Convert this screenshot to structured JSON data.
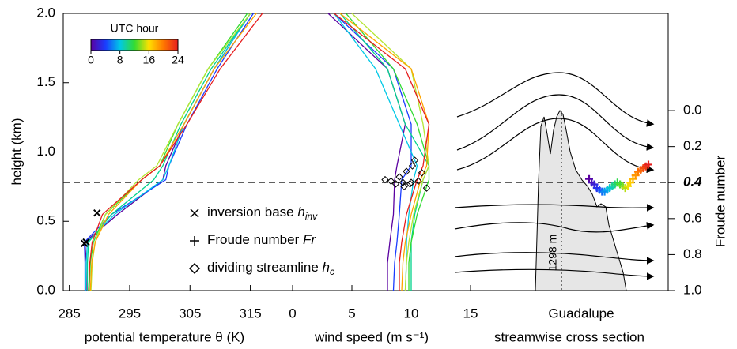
{
  "chart_data": [
    {
      "type": "line",
      "xlabel": "potential temperature θ (K)",
      "ylabel": "height (km)",
      "xlim": [
        284,
        322
      ],
      "xticks": [
        285,
        295,
        305,
        315
      ],
      "ylim": [
        0,
        2
      ],
      "yticks": [
        {
          "value": 0,
          "label": "0.0"
        },
        0.5,
        {
          "value": 1,
          "label": "1.0"
        },
        1.5,
        {
          "value": 2,
          "label": "2.0"
        }
      ],
      "y": [
        0,
        0.2,
        0.35,
        0.55,
        0.8,
        0.9,
        1.2,
        1.6,
        2.0
      ],
      "series": [
        {
          "color": "#5a00a0",
          "values": [
            287.8,
            287.8,
            287.6,
            293,
            300.5,
            301,
            304,
            309,
            315
          ]
        },
        {
          "color": "#1a3cff",
          "values": [
            287.6,
            287.6,
            287.5,
            292,
            301,
            301.5,
            304.5,
            309.5,
            315.5
          ]
        },
        {
          "color": "#00c8e6",
          "values": [
            287.7,
            287.8,
            288,
            292.5,
            300.5,
            301.5,
            304,
            309,
            315
          ]
        },
        {
          "color": "#00d28c",
          "values": [
            288,
            288,
            288.2,
            292,
            299,
            300.5,
            303.5,
            308.5,
            315
          ]
        },
        {
          "color": "#32dc32",
          "values": [
            288.3,
            288.5,
            289,
            291,
            297,
            300,
            303,
            308,
            314.5
          ]
        },
        {
          "color": "#b4e632",
          "values": [
            288.6,
            288.8,
            289.3,
            291,
            296.5,
            299.5,
            303,
            308,
            315
          ]
        },
        {
          "color": "#ffa500",
          "values": [
            288.5,
            288.7,
            289.3,
            291.5,
            297,
            300,
            304,
            309,
            316
          ]
        },
        {
          "color": "#e61e1e",
          "values": [
            288.2,
            288.4,
            288.8,
            290.5,
            297,
            300,
            304.5,
            310,
            317
          ]
        }
      ],
      "markers": {
        "x": [
          287.5,
          287.8,
          289.6
        ],
        "y": [
          0.34,
          0.35,
          0.56
        ]
      },
      "hline": 0.78,
      "colorbar": {
        "title": "UTC hour",
        "lim": [
          0,
          24
        ],
        "ticks": [
          0,
          8,
          16,
          24
        ],
        "colors": [
          "#5a00a0",
          "#1a3cff",
          "#00c8e6",
          "#32dc32",
          "#ffe000",
          "#ff7800",
          "#e61e1e"
        ]
      }
    },
    {
      "type": "line",
      "xlabel": "wind speed (m s⁻¹)",
      "xlim": [
        0,
        15
      ],
      "xticks": [
        0,
        5,
        10,
        15
      ],
      "ylim": [
        0,
        2
      ],
      "y": [
        0,
        0.2,
        0.35,
        0.55,
        0.8,
        0.9,
        1.2,
        1.6,
        2.0
      ],
      "series": [
        {
          "color": "#5a00a0",
          "values": [
            8,
            8,
            8.2,
            8.5,
            8.6,
            8.8,
            9.5,
            8,
            3
          ]
        },
        {
          "color": "#1a3cff",
          "values": [
            8.5,
            8.6,
            8.8,
            9,
            9.2,
            10,
            10,
            8.5,
            3.5
          ]
        },
        {
          "color": "#00c8e6",
          "values": [
            9.5,
            9.6,
            9.6,
            9.8,
            10.2,
            10.5,
            9,
            7,
            3.5
          ]
        },
        {
          "color": "#00d28c",
          "values": [
            10,
            10,
            10,
            10.3,
            11,
            11.5,
            9.5,
            8,
            4
          ]
        },
        {
          "color": "#32dc32",
          "values": [
            9.8,
            9.8,
            10,
            10.5,
            11.5,
            11.5,
            10.5,
            8.5,
            4.5
          ]
        },
        {
          "color": "#b4e632",
          "values": [
            9.5,
            9.6,
            9.8,
            10.2,
            11,
            11.5,
            11,
            10,
            5
          ]
        },
        {
          "color": "#ffa500",
          "values": [
            9.2,
            9.3,
            9.5,
            10,
            10.8,
            11.3,
            11.5,
            10,
            4
          ]
        },
        {
          "color": "#e61e1e",
          "values": [
            9,
            9,
            9.2,
            9.6,
            10.5,
            11,
            11.5,
            9.5,
            3.5
          ]
        }
      ],
      "markers": {
        "x": [
          7.8,
          8.3,
          8.7,
          9.0,
          9.3,
          9.6,
          9.9,
          10.1,
          10.3,
          10.6,
          10.9,
          11.3,
          9.4,
          10.0
        ],
        "y": [
          0.8,
          0.79,
          0.77,
          0.82,
          0.78,
          0.86,
          0.77,
          0.9,
          0.94,
          0.79,
          0.85,
          0.74,
          0.75,
          0.78
        ]
      },
      "legend": [
        {
          "marker": "x",
          "text": "inversion base ",
          "italic": "h",
          "sub": "inv"
        },
        {
          "marker": "plus",
          "text": "Froude number ",
          "italic": "Fr"
        },
        {
          "marker": "diamond",
          "text": "dividing streamline ",
          "italic": "h",
          "sub": "c"
        }
      ]
    },
    {
      "type": "scatter",
      "site": "Guadalupe",
      "xlabel": "streamwise cross section",
      "peak_label": "1298 m",
      "y2label": "Froude number",
      "y2lim": [
        -0.54,
        1.0
      ],
      "y2ticks": [
        {
          "value": 0,
          "label": "0.0"
        },
        0.2,
        0.4,
        0.6,
        0.8,
        {
          "value": 1,
          "label": "1.0"
        }
      ],
      "y2tick_bold": [
        2
      ],
      "values": [
        0.38,
        0.4,
        0.41,
        0.43,
        0.44,
        0.45,
        0.45,
        0.44,
        0.43,
        0.42,
        0.41,
        0.4,
        0.41,
        0.42,
        0.43,
        0.42,
        0.4,
        0.38,
        0.36,
        0.34,
        0.33,
        0.32,
        0.31,
        0.3
      ]
    }
  ]
}
